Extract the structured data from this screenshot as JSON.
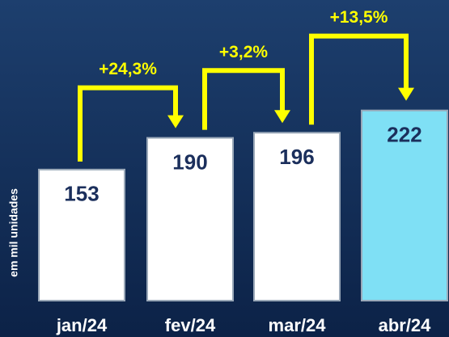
{
  "chart_data": {
    "type": "bar",
    "y_label": "em mil unidades",
    "categories": [
      "jan/24",
      "fev/24",
      "mar/24",
      "abr/24"
    ],
    "values": [
      153,
      190,
      196,
      222
    ],
    "colors": [
      "#ffffff",
      "#ffffff",
      "#ffffff",
      "#7fe0f5"
    ],
    "annotation_color": "#ffff00",
    "annotations": [
      "+24,3%",
      "+3,2%",
      "+13,5%"
    ]
  }
}
